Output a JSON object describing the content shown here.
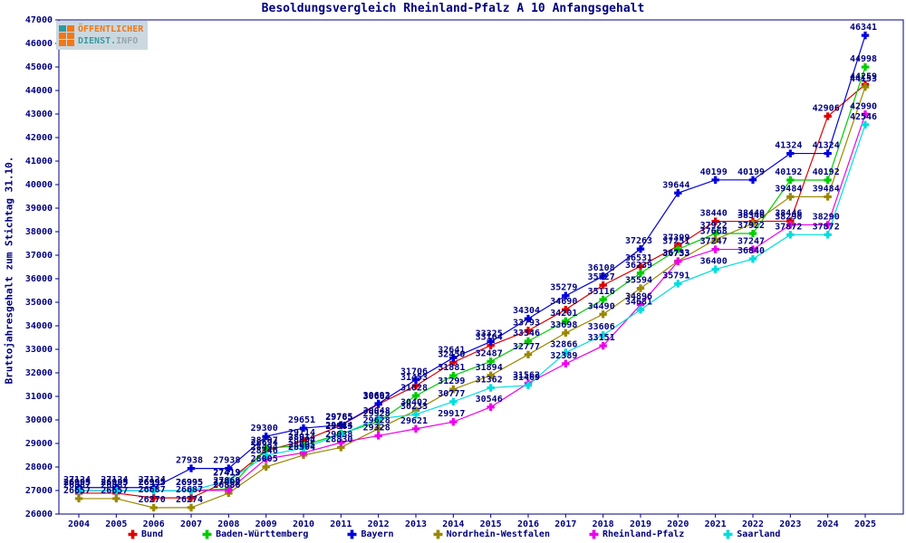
{
  "logo": {
    "line1": "ÖFFENTLICHER",
    "line2a": "DIENST.",
    "line2b": "INFO"
  },
  "colors": {
    "text": "#000080",
    "frame": "#000080",
    "background": "#ffffff",
    "logo_orange": "#f07818",
    "logo_teal": "#2f9aa0",
    "logo_gray": "#98a4ac",
    "logo_bg": "#cbd8e0"
  },
  "chart_data": {
    "type": "line",
    "title": "Besoldungsvergleich Rheinland-Pfalz A 10 Anfangsgehalt",
    "ylabel": "Bruttojahresgehalt zum Stichtag 31.10.",
    "xlabel": "",
    "x": [
      2004,
      2005,
      2006,
      2007,
      2008,
      2009,
      2010,
      2011,
      2012,
      2013,
      2014,
      2015,
      2016,
      2017,
      2018,
      2019,
      2020,
      2021,
      2022,
      2023,
      2024,
      2025
    ],
    "ylim": [
      26000,
      47000
    ],
    "ytick_step": 1000,
    "grid": false,
    "point_labels": true,
    "legend_position": "bottom",
    "series": [
      {
        "name": "Bund",
        "color": "#dd0000",
        "values": [
          26887,
          26887,
          26687,
          26687,
          27413,
          28694,
          29114,
          29765,
          30663,
          31453,
          32450,
          33164,
          33793,
          34690,
          35727,
          36531,
          37399,
          38440,
          38440,
          38446,
          42906,
          44259
        ]
      },
      {
        "name": "Baden-Württemberg",
        "color": "#00cc00",
        "values": [
          26995,
          26995,
          26995,
          26995,
          27069,
          28797,
          28914,
          29414,
          29928,
          31028,
          31881,
          32487,
          33346,
          34201,
          35116,
          36239,
          37251,
          37922,
          37922,
          40192,
          40192,
          44998
        ]
      },
      {
        "name": "Bayern",
        "color": "#0000dd",
        "values": [
          27124,
          27124,
          27124,
          27938,
          27938,
          29300,
          29651,
          29785,
          30692,
          31706,
          32641,
          33325,
          34304,
          35279,
          36108,
          37263,
          39644,
          40199,
          40199,
          41324,
          41324,
          46341
        ]
      },
      {
        "name": "Nordrhein-Westfalen",
        "color": "#998800",
        "values": [
          26657,
          26657,
          26270,
          26274,
          26886,
          28005,
          28504,
          28830,
          29628,
          30402,
          31299,
          31894,
          32777,
          33698,
          34490,
          35594,
          36753,
          37668,
          38346,
          39484,
          39484,
          44153
        ]
      },
      {
        "name": "Rheinland-Pfalz",
        "color": "#ee00ee",
        "values": [
          26995,
          26995,
          26995,
          26995,
          27009,
          28346,
          28605,
          29038,
          29328,
          29621,
          29917,
          30546,
          31562,
          32389,
          33151,
          34896,
          36733,
          37247,
          37247,
          38290,
          38290,
          42990
        ]
      },
      {
        "name": "Saarland",
        "color": "#00dddd",
        "values": [
          26995,
          26995,
          26995,
          26995,
          27419,
          28494,
          28804,
          29385,
          30048,
          30233,
          30777,
          31362,
          31469,
          32866,
          33606,
          34681,
          35791,
          36400,
          36840,
          37872,
          37872,
          42546
        ]
      }
    ]
  }
}
